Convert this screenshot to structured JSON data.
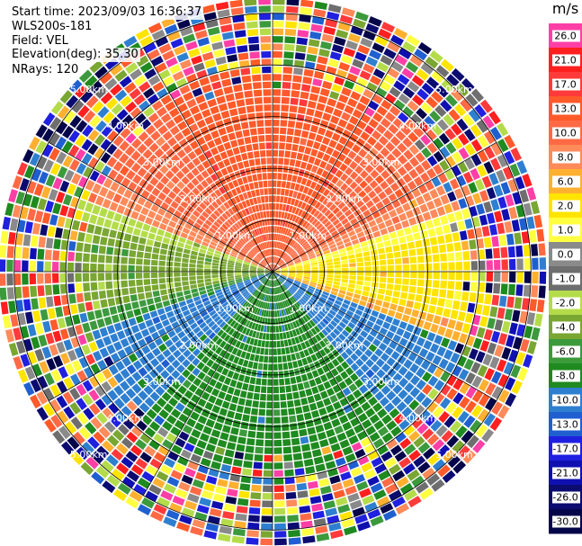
{
  "header": {
    "start_time": "Start time: 2023/09/03 16:36:37",
    "site": "WLS200s-181",
    "field": "Field: VEL",
    "elevation": "Elevation(deg): 35.30",
    "nrays": "NRays: 120"
  },
  "chart_data": {
    "type": "heatmap",
    "projection": "polar (PPI)",
    "field": "VEL",
    "units": "m/s",
    "n_rays": 120,
    "range_rings_km": [
      1.0,
      2.0,
      3.0,
      4.0,
      5.0
    ],
    "ring_labels": [
      "1.00km",
      "2.00km",
      "3.00km",
      "4.00km",
      "5.00km"
    ],
    "colorbar": {
      "title": "m/s",
      "tick_labels": [
        "26.0",
        "21.0",
        "17.0",
        "13.0",
        "10.0",
        "8.0",
        "6.0",
        "2.0",
        "1.0",
        "0.0",
        "-1.0",
        "-2.0",
        "-4.0",
        "-6.0",
        "-8.0",
        "-10.0",
        "-13.0",
        "-17.0",
        "-21.0",
        "-26.0",
        "-30.0"
      ],
      "colors": [
        "#ff3fa6",
        "#ff1f1f",
        "#ff3a3a",
        "#ff5a2a",
        "#ff6a45",
        "#ff8a5a",
        "#ffb030",
        "#ffe400",
        "#ffff40",
        "#8a8a8a",
        "#6e6e6e",
        "#b4dc4a",
        "#7aa632",
        "#3c9a3c",
        "#1f8a1f",
        "#2f7fd0",
        "#1f5fd0",
        "#2020e0",
        "#1010b0",
        "#0b0b70",
        "#05054a"
      ]
    },
    "pattern": {
      "inner_range_km": 2.4,
      "north_color_index": 3,
      "south_color_index": 14,
      "east_color_index": 7,
      "west_color_index": 12,
      "outer": "noise"
    }
  }
}
